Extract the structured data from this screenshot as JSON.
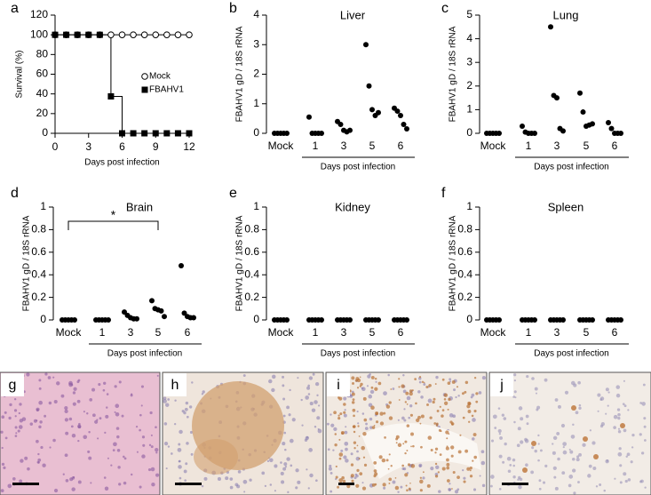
{
  "chart_data": [
    {
      "type": "line",
      "panel": "a",
      "ylabel": "Survival (%)",
      "xlabel": "Days post infection",
      "xlim": [
        0,
        12
      ],
      "xticks": [
        0,
        3,
        6,
        9,
        12
      ],
      "ylim": [
        0,
        120
      ],
      "yticks": [
        0,
        20,
        40,
        60,
        80,
        100,
        120
      ],
      "series": [
        {
          "name": "Mock",
          "marker": "circle",
          "color": "#000000",
          "x": [
            0,
            1,
            2,
            3,
            4,
            5,
            6,
            7,
            8,
            9,
            10,
            11,
            12
          ],
          "values": [
            100,
            100,
            100,
            100,
            100,
            100,
            100,
            100,
            100,
            100,
            100,
            100,
            100
          ]
        },
        {
          "name": "FBAHV1",
          "marker": "square",
          "color": "#000000",
          "x": [
            0,
            1,
            2,
            3,
            4,
            5,
            6,
            7,
            8,
            9,
            10,
            11,
            12
          ],
          "values": [
            100,
            100,
            100,
            100,
            100,
            37.5,
            0,
            0,
            0,
            0,
            0,
            0,
            0
          ]
        }
      ]
    },
    {
      "type": "strip",
      "panel": "b",
      "title": "Liver",
      "ylabel": "FBAHV1 gD / 18S rRNA",
      "xlabel": "Days post infection",
      "categories": [
        "Mock",
        "1",
        "3",
        "5",
        "6"
      ],
      "ylim": [
        0,
        4
      ],
      "yticks": [
        0,
        1,
        2,
        3,
        4
      ],
      "color": "#000000",
      "values": [
        [
          0,
          0,
          0,
          0,
          0
        ],
        [
          0.55,
          0,
          0,
          0,
          0
        ],
        [
          0.4,
          0.3,
          0.1,
          0.05,
          0.1
        ],
        [
          3.0,
          1.6,
          0.8,
          0.6,
          0.7
        ],
        [
          0.85,
          0.75,
          0.6,
          0.3,
          0.15
        ]
      ]
    },
    {
      "type": "strip",
      "panel": "c",
      "title": "Lung",
      "ylabel": "FBAHV1 gD / 18S rRNA",
      "xlabel": "Days post infection",
      "categories": [
        "Mock",
        "1",
        "3",
        "5",
        "6"
      ],
      "ylim": [
        0,
        5
      ],
      "yticks": [
        0,
        1,
        2,
        3,
        4,
        5
      ],
      "color": "#000000",
      "values": [
        [
          0,
          0,
          0,
          0,
          0
        ],
        [
          0.3,
          0.05,
          0,
          0,
          0
        ],
        [
          4.5,
          1.6,
          1.5,
          0.2,
          0.1
        ],
        [
          1.7,
          0.9,
          0.3,
          0.35,
          0.4
        ],
        [
          0.45,
          0.2,
          0,
          0,
          0
        ]
      ]
    },
    {
      "type": "strip",
      "panel": "d",
      "title": "Brain",
      "ylabel": "FBAHV1 gD / 18S rRNA",
      "xlabel": "Days post infection",
      "annotation": "*",
      "categories": [
        "Mock",
        "1",
        "3",
        "5",
        "6"
      ],
      "ylim": [
        0,
        1
      ],
      "yticks": [
        0,
        0.2,
        0.4,
        0.6,
        0.8,
        1
      ],
      "color": "#000000",
      "values": [
        [
          0,
          0,
          0,
          0,
          0
        ],
        [
          0,
          0,
          0,
          0,
          0
        ],
        [
          0.07,
          0.04,
          0.02,
          0.01,
          0.01
        ],
        [
          0.17,
          0.1,
          0.09,
          0.08,
          0.03
        ],
        [
          0.48,
          0.06,
          0.03,
          0.02,
          0.02
        ]
      ]
    },
    {
      "type": "strip",
      "panel": "e",
      "title": "Kidney",
      "ylabel": "FBAHV1 gD / 18S rRNA",
      "xlabel": "Days post infection",
      "categories": [
        "Mock",
        "1",
        "3",
        "5",
        "6"
      ],
      "ylim": [
        0,
        1
      ],
      "yticks": [
        0,
        0.2,
        0.4,
        0.6,
        0.8,
        1
      ],
      "color": "#000000",
      "values": [
        [
          0,
          0,
          0,
          0,
          0
        ],
        [
          0,
          0,
          0,
          0,
          0
        ],
        [
          0,
          0,
          0,
          0,
          0
        ],
        [
          0,
          0,
          0,
          0,
          0
        ],
        [
          0,
          0,
          0,
          0,
          0
        ]
      ]
    },
    {
      "type": "strip",
      "panel": "f",
      "title": "Spleen",
      "ylabel": "FBAHV1 gD / 18S rRNA",
      "xlabel": "Days post infection",
      "categories": [
        "Mock",
        "1",
        "3",
        "5",
        "6"
      ],
      "ylim": [
        0,
        1
      ],
      "yticks": [
        0,
        0.2,
        0.4,
        0.6,
        0.8,
        1
      ],
      "color": "#000000",
      "values": [
        [
          0,
          0,
          0,
          0,
          0
        ],
        [
          0,
          0,
          0,
          0,
          0
        ],
        [
          0,
          0,
          0,
          0,
          0
        ],
        [
          0,
          0,
          0,
          0,
          0
        ],
        [
          0,
          0,
          0,
          0,
          0
        ]
      ]
    }
  ],
  "images": [
    {
      "label": "g"
    },
    {
      "label": "h"
    },
    {
      "label": "i"
    },
    {
      "label": "j"
    }
  ]
}
